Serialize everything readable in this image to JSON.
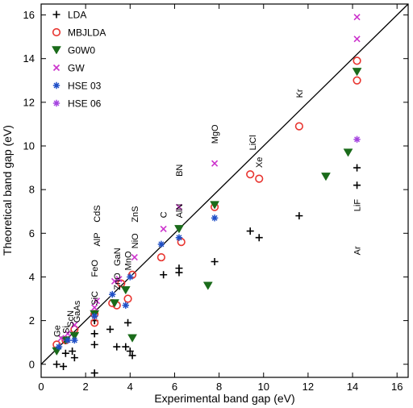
{
  "chart_data": {
    "type": "scatter",
    "xlabel": "Experimental band gap (eV)",
    "ylabel": "Theoretical band gap (eV)",
    "xlim": [
      0,
      16.5
    ],
    "ylim": [
      -0.6,
      16.5
    ],
    "x_ticks": [
      "0",
      "2",
      "4",
      "6",
      "8",
      "10",
      "12",
      "14",
      "16"
    ],
    "y_ticks": [
      "0",
      "2",
      "4",
      "6",
      "8",
      "10",
      "12",
      "14",
      "16"
    ],
    "x_tick_values": [
      0,
      2,
      4,
      6,
      8,
      10,
      12,
      14,
      16
    ],
    "y_tick_values": [
      0,
      2,
      4,
      6,
      8,
      10,
      12,
      14,
      16
    ],
    "reference_line": "y = x",
    "legend_placement": "top-left",
    "series": [
      {
        "name": "LDA",
        "color": "#000000",
        "marker": "plus",
        "points": [
          [
            0.7,
            0.0
          ],
          [
            1.0,
            -0.1
          ],
          [
            1.1,
            0.5
          ],
          [
            1.4,
            0.6
          ],
          [
            1.5,
            0.3
          ],
          [
            2.4,
            -0.4
          ],
          [
            2.4,
            0.9
          ],
          [
            2.4,
            1.4
          ],
          [
            2.4,
            2.0
          ],
          [
            3.1,
            1.6
          ],
          [
            3.4,
            0.8
          ],
          [
            3.8,
            0.8
          ],
          [
            3.9,
            1.9
          ],
          [
            4.0,
            0.6
          ],
          [
            4.1,
            0.4
          ],
          [
            5.5,
            4.1
          ],
          [
            6.2,
            4.4
          ],
          [
            6.2,
            4.2
          ],
          [
            7.8,
            4.7
          ],
          [
            9.4,
            6.1
          ],
          [
            9.8,
            5.8
          ],
          [
            11.6,
            6.8
          ],
          [
            14.2,
            9.0
          ],
          [
            14.2,
            8.2
          ]
        ]
      },
      {
        "name": "MBJLDA",
        "color": "#e8342f",
        "marker": "circle",
        "points": [
          [
            0.7,
            0.9
          ],
          [
            1.1,
            1.1
          ],
          [
            1.5,
            1.6
          ],
          [
            2.4,
            1.9
          ],
          [
            2.4,
            2.3
          ],
          [
            3.2,
            2.8
          ],
          [
            3.4,
            2.7
          ],
          [
            3.6,
            3.7
          ],
          [
            3.9,
            3.0
          ],
          [
            4.1,
            4.1
          ],
          [
            5.4,
            4.9
          ],
          [
            6.3,
            5.6
          ],
          [
            7.8,
            7.2
          ],
          [
            9.4,
            8.7
          ],
          [
            9.8,
            8.5
          ],
          [
            11.6,
            10.9
          ],
          [
            14.2,
            13.9
          ],
          [
            14.2,
            13.0
          ]
        ]
      },
      {
        "name": "G0W0",
        "color": "#1a6b1a",
        "marker": "triangle-down",
        "points": [
          [
            0.7,
            0.6
          ],
          [
            1.1,
            1.1
          ],
          [
            1.5,
            1.3
          ],
          [
            2.4,
            2.3
          ],
          [
            3.3,
            2.8
          ],
          [
            3.8,
            3.4
          ],
          [
            4.1,
            1.2
          ],
          [
            6.2,
            6.2
          ],
          [
            7.5,
            3.6
          ],
          [
            7.8,
            7.3
          ],
          [
            12.8,
            8.6
          ],
          [
            13.8,
            9.7
          ],
          [
            14.2,
            13.4
          ]
        ]
      },
      {
        "name": "GW",
        "color": "#cc33cc",
        "marker": "x",
        "points": [
          [
            0.9,
            1.2
          ],
          [
            1.2,
            1.4
          ],
          [
            1.5,
            1.8
          ],
          [
            2.4,
            2.6
          ],
          [
            2.5,
            2.9
          ],
          [
            3.3,
            3.8
          ],
          [
            3.5,
            3.9
          ],
          [
            4.2,
            4.9
          ],
          [
            5.5,
            6.2
          ],
          [
            6.2,
            7.2
          ],
          [
            7.8,
            9.2
          ],
          [
            14.2,
            15.9
          ],
          [
            14.2,
            14.9
          ]
        ]
      },
      {
        "name": "HSE 03",
        "color": "#1f4fc7",
        "marker": "asterisk",
        "points": [
          [
            0.8,
            0.8
          ],
          [
            1.2,
            1.1
          ],
          [
            1.5,
            1.1
          ],
          [
            2.4,
            2.2
          ],
          [
            3.2,
            3.2
          ],
          [
            3.8,
            2.7
          ],
          [
            4.0,
            4.0
          ],
          [
            5.4,
            5.5
          ],
          [
            6.2,
            5.8
          ],
          [
            7.8,
            6.7
          ]
        ]
      },
      {
        "name": "HSE 06",
        "color": "#a646e0",
        "marker": "asterisk",
        "points": [
          [
            14.2,
            10.3
          ]
        ]
      }
    ],
    "annotations": [
      {
        "text": "Ge",
        "x": 0.7,
        "y": 1.25,
        "rotate": -90
      },
      {
        "text": "Si",
        "x": 1.1,
        "y": 1.4,
        "rotate": -90
      },
      {
        "text": "ScN",
        "x": 1.3,
        "y": 1.7,
        "rotate": -90
      },
      {
        "text": "GaAs",
        "x": 1.6,
        "y": 1.9,
        "rotate": -90
      },
      {
        "text": "SiC",
        "x": 2.4,
        "y": 2.7,
        "rotate": -90
      },
      {
        "text": "FeO",
        "x": 2.4,
        "y": 4.0,
        "rotate": -90
      },
      {
        "text": "AlP",
        "x": 2.5,
        "y": 5.4,
        "rotate": -90
      },
      {
        "text": "CdS",
        "x": 2.5,
        "y": 6.5,
        "rotate": -90
      },
      {
        "text": "ZnO",
        "x": 3.4,
        "y": 3.4,
        "rotate": -90
      },
      {
        "text": "GaN",
        "x": 3.4,
        "y": 4.5,
        "rotate": -90
      },
      {
        "text": "MnO",
        "x": 3.9,
        "y": 4.3,
        "rotate": -90
      },
      {
        "text": "NiO",
        "x": 4.2,
        "y": 5.3,
        "rotate": -90
      },
      {
        "text": "ZnS",
        "x": 4.2,
        "y": 6.5,
        "rotate": -90
      },
      {
        "text": "C",
        "x": 5.5,
        "y": 6.7,
        "rotate": -90
      },
      {
        "text": "AlN",
        "x": 6.2,
        "y": 6.7,
        "rotate": -90
      },
      {
        "text": "BN",
        "x": 6.2,
        "y": 8.6,
        "rotate": -90
      },
      {
        "text": "MgO",
        "x": 7.8,
        "y": 10.1,
        "rotate": -90
      },
      {
        "text": "LiCl",
        "x": 9.5,
        "y": 9.8,
        "rotate": -90
      },
      {
        "text": "Xe",
        "x": 9.8,
        "y": 9.0,
        "rotate": -90
      },
      {
        "text": "Kr",
        "x": 11.6,
        "y": 12.2,
        "rotate": -90
      },
      {
        "text": "LiF",
        "x": 14.2,
        "y": 7.0,
        "rotate": -90
      },
      {
        "text": "Ar",
        "x": 14.2,
        "y": 5.0,
        "rotate": -90
      }
    ]
  }
}
